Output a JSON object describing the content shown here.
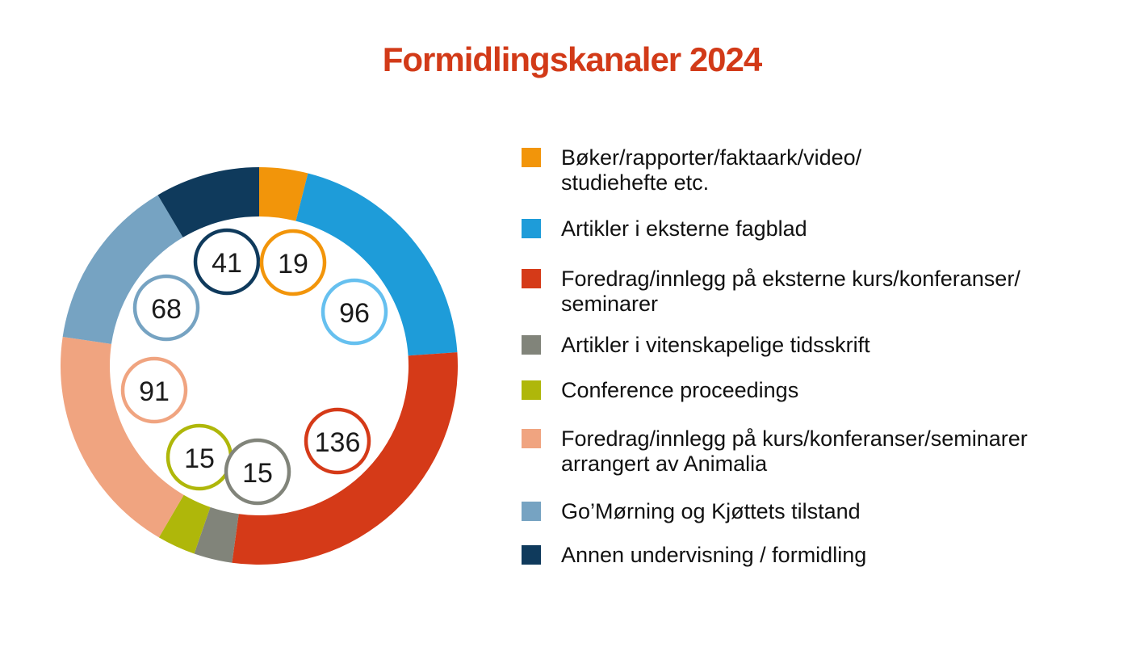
{
  "title": "Formidlingskanaler 2024",
  "colors": {
    "title": "#d23a18",
    "text": "#111111",
    "background": "#ffffff",
    "badge_number": "#1b1b1b",
    "badge_fill": "#ffffff"
  },
  "chart_data": {
    "type": "pie",
    "variant": "donut",
    "title": "Formidlingskanaler 2024",
    "total": 481,
    "start_angle_deg": 0,
    "direction": "clockwise",
    "legend_position": "right",
    "value_labels": "circled badges inside ring",
    "series": [
      {
        "label": "Bøker/rapporter/faktaark/video/studiehefte etc.",
        "lines": [
          "Bøker/rapporter/faktaark/video/",
          "studiehefte etc."
        ],
        "value": 19,
        "color": "#f2950a",
        "badge_color": "#f2950a"
      },
      {
        "label": "Artikler i eksterne fagblad",
        "lines": [
          "Artikler i eksterne fagblad"
        ],
        "value": 96,
        "color": "#1e9cd9",
        "badge_color": "#66c0ef"
      },
      {
        "label": "Foredrag/innlegg på eksterne kurs/konferanser/seminarer",
        "lines": [
          "Foredrag/innlegg på eksterne kurs/konferanser/",
          "seminarer"
        ],
        "value": 136,
        "color": "#d53a18",
        "badge_color": "#d53a18"
      },
      {
        "label": "Artikler i vitenskapelige tidsskrift",
        "lines": [
          "Artikler i vitenskapelige tidsskrift"
        ],
        "value": 15,
        "color": "#81847a",
        "badge_color": "#81847a"
      },
      {
        "label": "Conference proceedings",
        "lines": [
          "Conference proceedings"
        ],
        "value": 15,
        "color": "#afb70a",
        "badge_color": "#afb70a"
      },
      {
        "label": "Foredrag/innlegg på kurs/konferanser/seminarer arrangert av Animalia",
        "lines": [
          "Foredrag/innlegg på kurs/konferanser/seminarer",
          "arrangert av Animalia"
        ],
        "value": 91,
        "color": "#f0a480",
        "badge_color": "#f0a480"
      },
      {
        "label": "Go’Mørning og Kjøttets tilstand",
        "lines": [
          "Go’Mørning og Kjøttets tilstand"
        ],
        "value": 68,
        "color": "#76a3c2",
        "badge_color": "#76a3c2"
      },
      {
        "label": "Annen undervisning / formidling",
        "lines": [
          "Annen undervisning / formidling"
        ],
        "value": 41,
        "color": "#0f3a5c",
        "badge_color": "#0f3a5c"
      }
    ]
  }
}
